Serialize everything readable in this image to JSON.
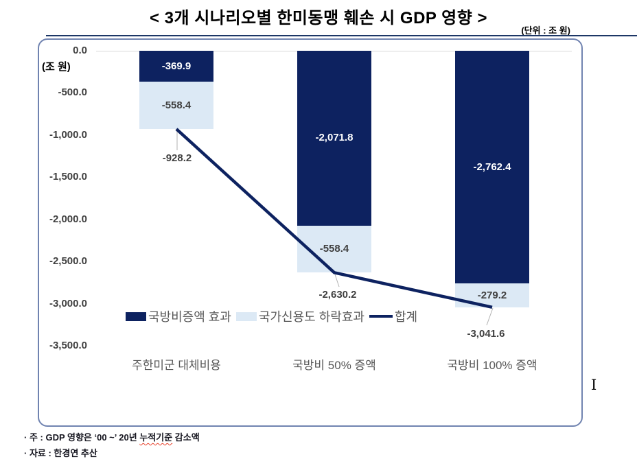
{
  "page": {
    "title": "< 3개 시나리오별 한미동맹 훼손 시 GDP 영향 >",
    "unit_label": "(단위 : 조 원)",
    "cursor_glyph": "I"
  },
  "notes": {
    "note1_prefix": "· 주 : GDP 영향은  ‘00 ~’  20년 ",
    "note1_underlined": "누적기준",
    "note1_suffix": " 감소액",
    "note2": "· 자료 : 한경연 추산"
  },
  "chart_data": {
    "type": "bar",
    "subtype": "stacked-bars-with-total-line",
    "title": "< 3개 시나리오별 한미동맹 훼손 시 GDP 영향 >",
    "unit": "조 원",
    "axis_unit_label": "(조 원)",
    "categories": [
      "주한미군 대체비용",
      "국방비 50% 증액",
      "국방비 100% 증액"
    ],
    "series": [
      {
        "name": "국방비증액 효과",
        "kind": "bar",
        "color": "#0d2260",
        "values": [
          -369.9,
          -2071.8,
          -2762.4
        ],
        "labels": [
          "-369.9",
          "-2,071.8",
          "-2,762.4"
        ],
        "label_color": "#ffffff"
      },
      {
        "name": "국가신용도 하락효과",
        "kind": "bar",
        "color": "#dce9f5",
        "values": [
          -558.4,
          -558.4,
          -279.2
        ],
        "labels": [
          "-558.4",
          "-558.4",
          "-279.2"
        ],
        "label_color": "#404040"
      },
      {
        "name": "합계",
        "kind": "line",
        "color": "#0d2260",
        "values": [
          -928.2,
          -2630.2,
          -3041.6
        ],
        "labels": [
          "-928.2",
          "-2,630.2",
          "-3,041.6"
        ],
        "label_color": "#404040"
      }
    ],
    "stacked": true,
    "ylim": [
      -3500,
      0
    ],
    "yticks": [
      {
        "value": 0,
        "label": "0.0"
      },
      {
        "value": -500,
        "label": "-500.0"
      },
      {
        "value": -1000,
        "label": "-1,000.0"
      },
      {
        "value": -1500,
        "label": "-1,500.0"
      },
      {
        "value": -2000,
        "label": "-2,000.0"
      },
      {
        "value": -2500,
        "label": "-2,500.0"
      },
      {
        "value": -3000,
        "label": "-3,000.0"
      },
      {
        "value": -3500,
        "label": "-3,500.0"
      }
    ],
    "grid": "zero-line-only",
    "gridline_color": "#d9d9d9",
    "legend_position": "inside-bottom-left",
    "frame": {
      "border_color": "#7083b0",
      "rounded": true
    }
  }
}
